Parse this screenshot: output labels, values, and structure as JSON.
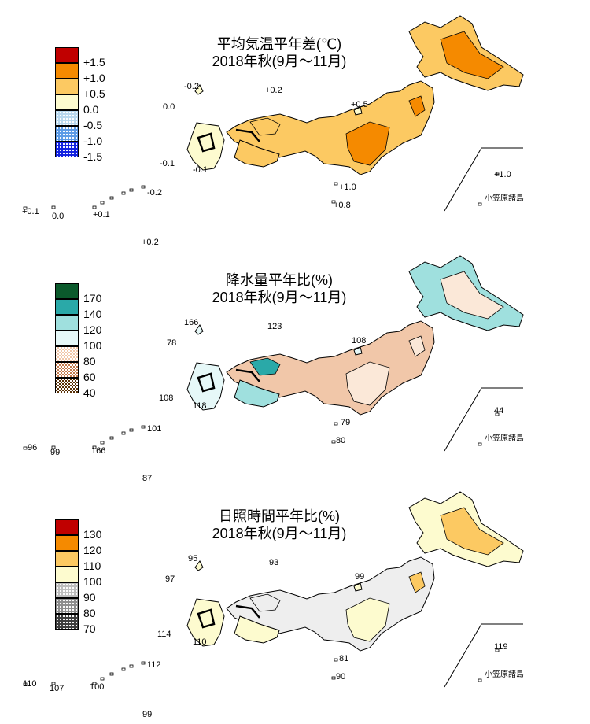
{
  "panels": [
    {
      "title1": "平均気温平年差(℃)",
      "title2": "2018年秋(9月～11月)",
      "legend": [
        {
          "label": "+1.5",
          "fill": "solid",
          "color": "#c00000"
        },
        {
          "label": "+1.0",
          "fill": "solid",
          "color": "#f58a00"
        },
        {
          "label": "+0.5",
          "fill": "solid",
          "color": "#fcc962"
        },
        {
          "label": "0.0",
          "fill": "solid",
          "color": "#fdfbcf"
        },
        {
          "label": "-0.5",
          "fill": "dots",
          "color": "#b9d8ee"
        },
        {
          "label": "-1.0",
          "fill": "dots",
          "color": "#5b9ae6"
        },
        {
          "label": "-1.5",
          "fill": "dots",
          "color": "#1020e0"
        }
      ],
      "values": [
        "-0.2",
        "+0.2",
        "0.0",
        "+0.5",
        "-0.1",
        "-0.1",
        "+1.0",
        "+0.8",
        "+1.0",
        "-0.2",
        "+0.1",
        "0.0",
        "+0.1",
        "+0.2"
      ],
      "ogasawara": "小笠原諸島",
      "regions": [
        "#fcc962",
        "#fcc962",
        "#f58a00",
        "#fdfbcf",
        "#fcc962",
        "#f58a00",
        "#fcc962"
      ]
    },
    {
      "title1": "降水量平年比(%)",
      "title2": "2018年秋(9月～11月)",
      "legend": [
        {
          "label": "170",
          "fill": "solid",
          "color": "#0b5a2c"
        },
        {
          "label": "140",
          "fill": "solid",
          "color": "#2aa9a8"
        },
        {
          "label": "120",
          "fill": "solid",
          "color": "#9fe0de"
        },
        {
          "label": "100",
          "fill": "solid",
          "color": "#e6f8f8"
        },
        {
          "label": "80",
          "fill": "checks",
          "color": "#f1c7a9"
        },
        {
          "label": "60",
          "fill": "checks",
          "color": "#c27a4c"
        },
        {
          "label": "40",
          "fill": "checks",
          "color": "#5a3208"
        }
      ],
      "values": [
        "166",
        "123",
        "78",
        "108",
        "108",
        "118",
        "79",
        "80",
        "44",
        "101",
        "96",
        "99",
        "166",
        "87"
      ],
      "ogasawara": "小笠原諸島",
      "regions": [
        "#9fe0de",
        "#2aa9a8",
        "#fbe8d8",
        "#e6f8f8",
        "#f1c7a9",
        "#fbe8d8",
        "#9fe0de"
      ]
    },
    {
      "title1": "日照時間平年比(%)",
      "title2": "2018年秋(9月～11月)",
      "legend": [
        {
          "label": "130",
          "fill": "solid",
          "color": "#c00000"
        },
        {
          "label": "120",
          "fill": "solid",
          "color": "#f58a00"
        },
        {
          "label": "110",
          "fill": "solid",
          "color": "#fcc962"
        },
        {
          "label": "100",
          "fill": "solid",
          "color": "#fdfbcf"
        },
        {
          "label": "90",
          "fill": "dots",
          "color": "#bdbdbd"
        },
        {
          "label": "80",
          "fill": "dots",
          "color": "#8c8c8c"
        },
        {
          "label": "70",
          "fill": "dots",
          "color": "#3c3c3c"
        }
      ],
      "values": [
        "95",
        "93",
        "97",
        "99",
        "114",
        "110",
        "81",
        "90",
        "119",
        "112",
        "110",
        "107",
        "100",
        "99"
      ],
      "ogasawara": "小笠原諸島",
      "regions": [
        "#fdfbcf",
        "#eeeeee",
        "#fcc962",
        "#fdfbcf",
        "#eeeeee",
        "#fdfbcf",
        "#fdfbcf"
      ]
    }
  ]
}
